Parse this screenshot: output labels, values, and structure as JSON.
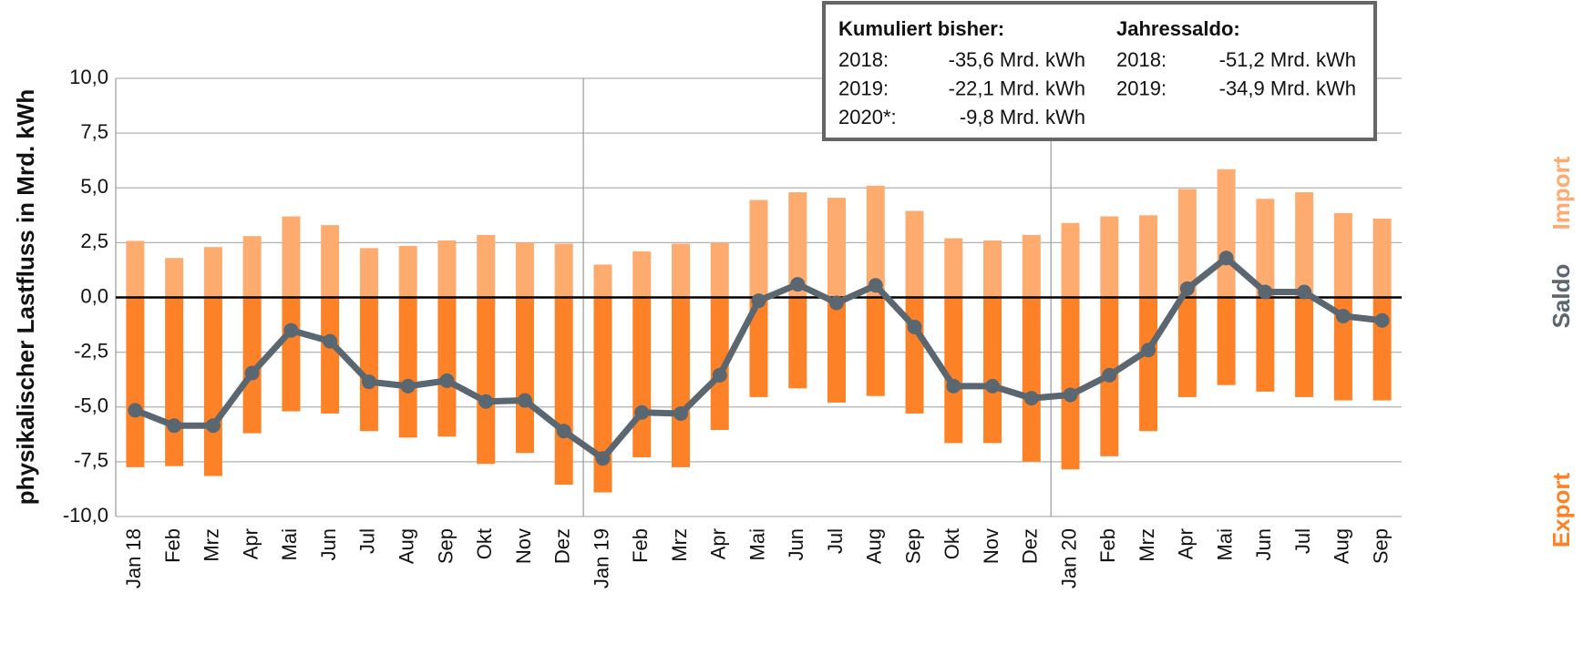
{
  "chart_data": {
    "type": "bar",
    "y_axis_label": "physikalischer Lastfluss in Mrd. kWh",
    "categories": [
      "Jan 18",
      "Feb",
      "Mrz",
      "Apr",
      "Mai",
      "Jun",
      "Jul",
      "Aug",
      "Sep",
      "Okt",
      "Nov",
      "Dez",
      "Jan 19",
      "Feb",
      "Mrz",
      "Apr",
      "Mai",
      "Jun",
      "Jul",
      "Aug",
      "Sep",
      "Okt",
      "Nov",
      "Dez",
      "Jan 20",
      "Feb",
      "Mrz",
      "Apr",
      "Mai",
      "Jun",
      "Jul",
      "Aug",
      "Sep"
    ],
    "series": [
      {
        "name": "Import",
        "type": "bar",
        "color": "#fdab6e",
        "values": [
          2.58,
          1.8,
          2.3,
          2.8,
          3.7,
          3.3,
          2.25,
          2.35,
          2.6,
          2.85,
          2.5,
          2.45,
          1.5,
          2.1,
          2.45,
          2.5,
          4.45,
          4.8,
          4.55,
          5.1,
          3.95,
          2.7,
          2.6,
          2.85,
          3.4,
          3.7,
          3.75,
          4.95,
          5.85,
          4.5,
          4.8,
          3.85,
          3.6
        ]
      },
      {
        "name": "Saldo",
        "type": "line",
        "color": "#5a6670",
        "values": [
          -5.15,
          -5.85,
          -5.85,
          -3.45,
          -1.5,
          -2.0,
          -3.85,
          -4.05,
          -3.8,
          -4.75,
          -4.7,
          -6.1,
          -7.35,
          -5.25,
          -5.3,
          -3.55,
          -0.15,
          0.6,
          -0.25,
          0.55,
          -1.35,
          -4.05,
          -4.05,
          -4.6,
          -4.45,
          -3.55,
          -2.4,
          0.4,
          1.8,
          0.25,
          0.25,
          -0.85,
          -1.05
        ]
      },
      {
        "name": "Export",
        "type": "bar",
        "color": "#fd8227",
        "values": [
          -7.75,
          -7.7,
          -8.15,
          -6.2,
          -5.2,
          -5.3,
          -6.1,
          -6.4,
          -6.35,
          -7.6,
          -7.1,
          -8.55,
          -8.9,
          -7.3,
          -7.75,
          -6.05,
          -4.55,
          -4.15,
          -4.8,
          -4.5,
          -5.3,
          -6.65,
          -6.65,
          -7.5,
          -7.85,
          -7.25,
          -6.1,
          -4.55,
          -4.0,
          -4.3,
          -4.55,
          -4.7,
          -4.7
        ]
      }
    ],
    "ylim": [
      -10,
      10
    ],
    "yticks": [
      {
        "value": 10,
        "label": "10,0"
      },
      {
        "value": 7.5,
        "label": "7,5"
      },
      {
        "value": 5,
        "label": "5,0"
      },
      {
        "value": 2.5,
        "label": "2,5"
      },
      {
        "value": 0,
        "label": "0,0"
      },
      {
        "value": -2.5,
        "label": "-2,5"
      },
      {
        "value": -5,
        "label": "-5,0"
      },
      {
        "value": -7.5,
        "label": "-7,5"
      },
      {
        "value": -10,
        "label": "-10,0"
      }
    ],
    "grid": true,
    "info_box": {
      "left_title": "Kumuliert bisher:",
      "left_rows": [
        [
          "2018:",
          "-35,6 Mrd. kWh"
        ],
        [
          "2019:",
          "-22,1 Mrd. kWh"
        ],
        [
          "2020*:",
          "-9,8 Mrd. kWh"
        ]
      ],
      "right_title": "Jahressaldo:",
      "right_rows": [
        [
          "2018:",
          "-51,2 Mrd. kWh"
        ],
        [
          "2019:",
          "-34,9 Mrd. kWh"
        ]
      ]
    }
  }
}
